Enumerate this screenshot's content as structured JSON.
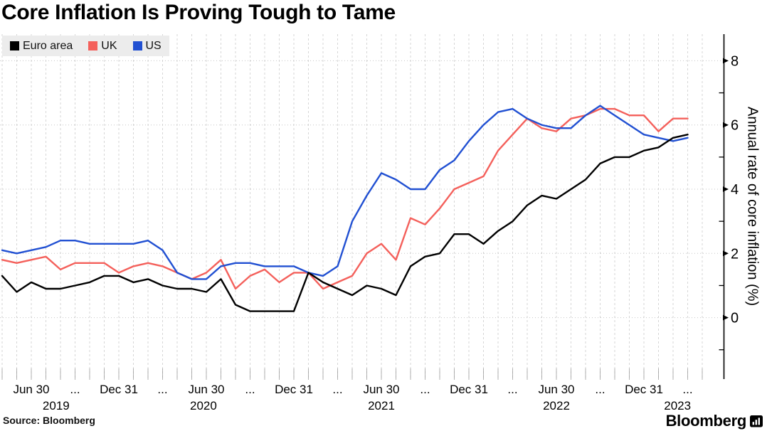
{
  "header": {
    "title": "Core Inflation Is Proving Tough to Tame"
  },
  "footer": {
    "source": "Source: Bloomberg",
    "brand": "Bloomberg"
  },
  "chart_data": {
    "type": "line",
    "title": "Core Inflation Is Proving Tough to Tame",
    "xlabel": "",
    "ylabel": "Annual rate of core inflation (%)",
    "ylim": [
      -1.9,
      8.85
    ],
    "y_major_ticks": [
      0,
      2,
      4,
      6,
      8
    ],
    "y_minor_ticks": [
      -1,
      1,
      3,
      5,
      7
    ],
    "x_unit": "month",
    "x_range_start": "2019-04",
    "x_range_end": "2023-03",
    "grid": {
      "vertical": "monthly dashed",
      "horizontal": "dotted at major ticks"
    },
    "legend_position": "top-left",
    "x_tick_labels": [
      {
        "label": "Jun 30",
        "mi": 2
      },
      {
        "label": "...",
        "mi": 5
      },
      {
        "label": "Dec 31",
        "mi": 8
      },
      {
        "label": "...",
        "mi": 11
      },
      {
        "label": "Jun 30",
        "mi": 14
      },
      {
        "label": "...",
        "mi": 17
      },
      {
        "label": "Dec 31",
        "mi": 20
      },
      {
        "label": "...",
        "mi": 23
      },
      {
        "label": "Jun 30",
        "mi": 26
      },
      {
        "label": "...",
        "mi": 29
      },
      {
        "label": "Dec 31",
        "mi": 32
      },
      {
        "label": "...",
        "mi": 35
      },
      {
        "label": "Jun 30",
        "mi": 38
      },
      {
        "label": "...",
        "mi": 41
      },
      {
        "label": "Dec 31",
        "mi": 44
      },
      {
        "label": "...",
        "mi": 47
      }
    ],
    "x_year_labels": [
      {
        "label": "2019",
        "mi": 3.7
      },
      {
        "label": "2020",
        "mi": 13.8
      },
      {
        "label": "2021",
        "mi": 26.0
      },
      {
        "label": "2022",
        "mi": 38.0
      },
      {
        "label": "2023",
        "mi": 46.3
      }
    ],
    "series": [
      {
        "name": "Euro area",
        "color": "#000000",
        "values": [
          1.3,
          0.8,
          1.1,
          0.9,
          0.9,
          1.0,
          1.1,
          1.3,
          1.3,
          1.1,
          1.2,
          1.0,
          0.9,
          0.9,
          0.8,
          1.2,
          0.4,
          0.2,
          0.2,
          0.2,
          0.2,
          1.4,
          1.1,
          0.9,
          0.7,
          1.0,
          0.9,
          0.7,
          1.6,
          1.9,
          2.0,
          2.6,
          2.6,
          2.3,
          2.7,
          3.0,
          3.5,
          3.8,
          3.7,
          4.0,
          4.3,
          4.8,
          5.0,
          5.0,
          5.2,
          5.3,
          5.6,
          5.7
        ]
      },
      {
        "name": "UK",
        "color": "#f4605b",
        "values": [
          1.8,
          1.7,
          1.8,
          1.9,
          1.5,
          1.7,
          1.7,
          1.7,
          1.4,
          1.6,
          1.7,
          1.6,
          1.4,
          1.2,
          1.4,
          1.8,
          0.9,
          1.3,
          1.5,
          1.1,
          1.4,
          1.4,
          0.9,
          1.1,
          1.3,
          2.0,
          2.3,
          1.8,
          3.1,
          2.9,
          3.4,
          4.0,
          4.2,
          4.4,
          5.2,
          5.7,
          6.2,
          5.9,
          5.8,
          6.2,
          6.3,
          6.5,
          6.5,
          6.3,
          6.3,
          5.8,
          6.2,
          6.2
        ]
      },
      {
        "name": "US",
        "color": "#2150d2",
        "values": [
          2.1,
          2.0,
          2.1,
          2.2,
          2.4,
          2.4,
          2.3,
          2.3,
          2.3,
          2.3,
          2.4,
          2.1,
          1.4,
          1.2,
          1.2,
          1.6,
          1.7,
          1.7,
          1.6,
          1.6,
          1.6,
          1.4,
          1.3,
          1.6,
          3.0,
          3.8,
          4.5,
          4.3,
          4.0,
          4.0,
          4.6,
          4.9,
          5.5,
          6.0,
          6.4,
          6.5,
          6.2,
          6.0,
          5.9,
          5.9,
          6.3,
          6.6,
          6.3,
          6.0,
          5.7,
          5.6,
          5.5,
          5.6
        ]
      }
    ]
  }
}
